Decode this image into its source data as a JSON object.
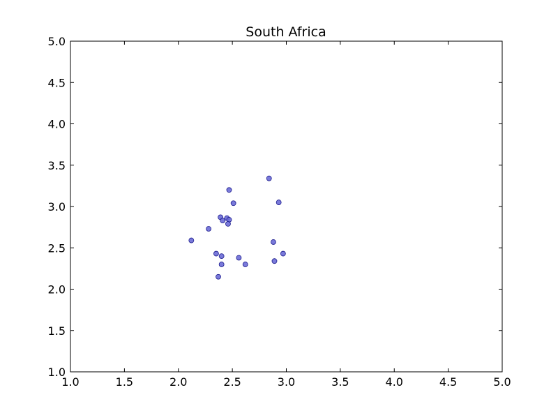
{
  "chart_data": {
    "type": "scatter",
    "title": "South Africa",
    "xlabel": "",
    "ylabel": "",
    "xlim": [
      1.0,
      5.0
    ],
    "ylim": [
      1.0,
      5.0
    ],
    "xticks": [
      "1.0",
      "1.5",
      "2.0",
      "2.5",
      "3.0",
      "3.5",
      "4.0",
      "4.5",
      "5.0"
    ],
    "yticks": [
      "1.0",
      "1.5",
      "2.0",
      "2.5",
      "3.0",
      "3.5",
      "4.0",
      "4.5",
      "5.0"
    ],
    "grid": false,
    "legend": "none",
    "marker_color": "#6b6bd6",
    "marker_edge_color": "#1a1a8c",
    "points": [
      {
        "x": 2.84,
        "y": 3.34
      },
      {
        "x": 2.47,
        "y": 3.2
      },
      {
        "x": 2.51,
        "y": 3.04
      },
      {
        "x": 2.93,
        "y": 3.05
      },
      {
        "x": 2.39,
        "y": 2.87
      },
      {
        "x": 2.41,
        "y": 2.83
      },
      {
        "x": 2.45,
        "y": 2.86
      },
      {
        "x": 2.47,
        "y": 2.84
      },
      {
        "x": 2.46,
        "y": 2.79
      },
      {
        "x": 2.28,
        "y": 2.73
      },
      {
        "x": 2.12,
        "y": 2.59
      },
      {
        "x": 2.88,
        "y": 2.57
      },
      {
        "x": 2.35,
        "y": 2.43
      },
      {
        "x": 2.4,
        "y": 2.4
      },
      {
        "x": 2.97,
        "y": 2.43
      },
      {
        "x": 2.56,
        "y": 2.38
      },
      {
        "x": 2.89,
        "y": 2.34
      },
      {
        "x": 2.4,
        "y": 2.3
      },
      {
        "x": 2.62,
        "y": 2.3
      },
      {
        "x": 2.37,
        "y": 2.15
      }
    ]
  }
}
